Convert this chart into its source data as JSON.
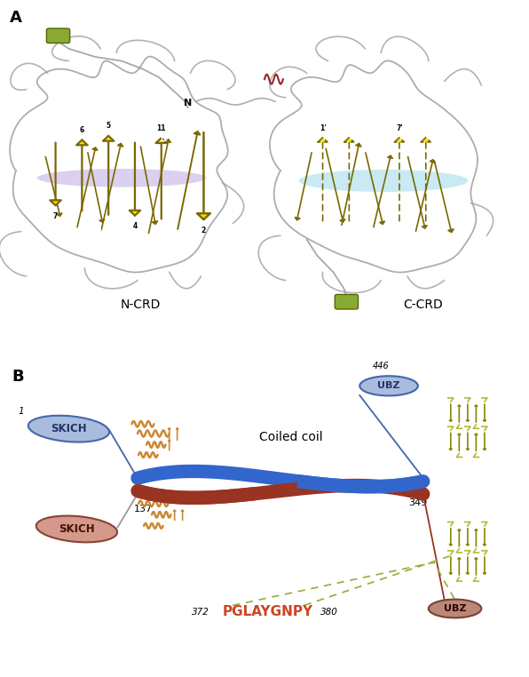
{
  "panel_A_label": "A",
  "panel_B_label": "B",
  "ncrd_label": "N-CRD",
  "ccrd_label": "C-CRD",
  "n_label": "N",
  "coiled_coil_label": "Coiled coil",
  "ubz_label": "UBZ",
  "skich_label": "SKICH",
  "num_137": "137",
  "num_349": "349",
  "num_446": "446",
  "num_1": "1",
  "peptide": "PGLAYGNPY",
  "pep_left": "372",
  "pep_right": "380",
  "yellow_bright": "#f5e800",
  "yellow_dark": "#7a6800",
  "loop_color": "#999999",
  "purple_color": "#b0a0d0",
  "blue_light": "#aaddee",
  "coil_blue": "#3366cc",
  "coil_red": "#993322",
  "peptide_color": "#cc4422",
  "dashed_color": "#99aa33",
  "green_cyl": "#88aa33",
  "dark_red_loop": "#881111",
  "skich_blue_fc": "#aabcde",
  "skich_blue_ec": "#4466aa",
  "skich_red_fc": "#d4998a",
  "skich_red_ec": "#884433",
  "ubz_blue_fc": "#aabcde",
  "ubz_blue_ec": "#4466aa",
  "ubz_red_fc": "#bb8877",
  "ubz_red_ec": "#774433",
  "orange_struct": "#cc8833"
}
